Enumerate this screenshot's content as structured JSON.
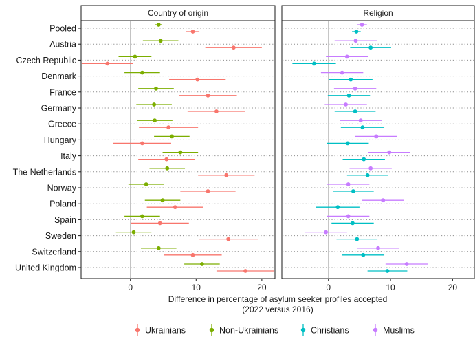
{
  "chart_data": {
    "type": "scatter",
    "subtype": "dot-and-whisker",
    "xlabel": "Difference in percentage of asylum seeker profiles accepted",
    "xlabel_line2": "(2022 versus 2016)",
    "reference_line_x": 0,
    "grid": "dotted horizontal lines per country",
    "legend_position": "bottom",
    "categories": [
      "Pooled",
      "Austria",
      "Czech Republic",
      "Denmark",
      "France",
      "Germany",
      "Greece",
      "Hungary",
      "Italy",
      "The Netherlands",
      "Norway",
      "Poland",
      "Spain",
      "Sweden",
      "Switzerland",
      "United Kingdom"
    ],
    "panels": [
      {
        "title": "Country of origin",
        "xlim": [
          -7.5,
          22
        ],
        "xticks": [
          0,
          10,
          20
        ],
        "series": [
          {
            "name": "Ukrainians",
            "color": "#F8766D",
            "values": [
              9.5,
              15.7,
              -3.5,
              10.2,
              11.8,
              13.1,
              5.8,
              1.8,
              5.5,
              14.6,
              11.8,
              6.8,
              4.5,
              14.9,
              9.5,
              17.5
            ],
            "lower": [
              8.5,
              11.4,
              -7.4,
              5.9,
              7.4,
              8.7,
              1.3,
              -2.6,
              1.2,
              10.3,
              7.6,
              2.5,
              0.1,
              10.4,
              5.1,
              13.1
            ],
            "upper": [
              10.5,
              20.0,
              0.4,
              14.5,
              16.2,
              17.5,
              10.3,
              6.2,
              9.8,
              18.9,
              16.0,
              11.1,
              8.9,
              19.4,
              13.9,
              21.9
            ]
          },
          {
            "name": "Non-Ukrainians",
            "color": "#7CAE00",
            "values": [
              4.3,
              4.6,
              0.7,
              1.8,
              3.9,
              3.6,
              3.7,
              6.3,
              7.6,
              5.6,
              2.4,
              4.9,
              1.8,
              0.5,
              4.3,
              10.9
            ],
            "lower": [
              3.8,
              1.9,
              -1.8,
              -0.9,
              1.2,
              0.9,
              1.0,
              3.6,
              4.9,
              2.9,
              -0.3,
              2.2,
              -0.9,
              -2.2,
              1.6,
              8.2
            ],
            "upper": [
              4.8,
              7.3,
              3.2,
              4.5,
              6.6,
              6.3,
              6.4,
              9.0,
              10.3,
              8.3,
              5.1,
              7.6,
              4.5,
              3.2,
              7.0,
              13.6
            ]
          }
        ]
      },
      {
        "title": "Religion",
        "xlim": [
          -7.5,
          23.5
        ],
        "xticks": [
          0,
          10,
          20
        ],
        "series": [
          {
            "name": "Christians",
            "color": "#00BFC4",
            "values": [
              4.5,
              6.8,
              -2.3,
              3.6,
              3.3,
              4.3,
              5.5,
              3.1,
              5.7,
              6.3,
              4.0,
              1.5,
              3.9,
              4.6,
              5.6,
              9.5
            ],
            "lower": [
              3.8,
              3.5,
              -5.8,
              0.1,
              -0.1,
              1.0,
              2.0,
              -0.3,
              2.3,
              3.0,
              0.7,
              -2.0,
              0.5,
              1.3,
              2.2,
              6.3
            ],
            "upper": [
              5.2,
              10.1,
              1.2,
              7.1,
              6.7,
              7.6,
              9.0,
              6.5,
              9.1,
              9.6,
              7.3,
              5.0,
              7.3,
              7.9,
              9.0,
              12.7
            ]
          },
          {
            "name": "Muslims",
            "color": "#C77CFF",
            "values": [
              5.4,
              4.4,
              3.0,
              2.2,
              4.3,
              2.8,
              5.2,
              7.7,
              9.8,
              6.8,
              3.2,
              8.8,
              3.2,
              -0.4,
              8.0,
              12.6
            ],
            "lower": [
              4.6,
              1.0,
              -0.4,
              -1.2,
              0.9,
              -0.6,
              1.8,
              4.3,
              6.4,
              3.4,
              -0.2,
              5.4,
              -0.2,
              -3.8,
              4.6,
              9.2
            ],
            "upper": [
              6.2,
              7.8,
              6.4,
              5.6,
              7.7,
              6.2,
              8.6,
              11.1,
              13.2,
              10.2,
              6.6,
              12.2,
              6.6,
              3.0,
              11.4,
              16.0
            ]
          }
        ]
      }
    ]
  }
}
